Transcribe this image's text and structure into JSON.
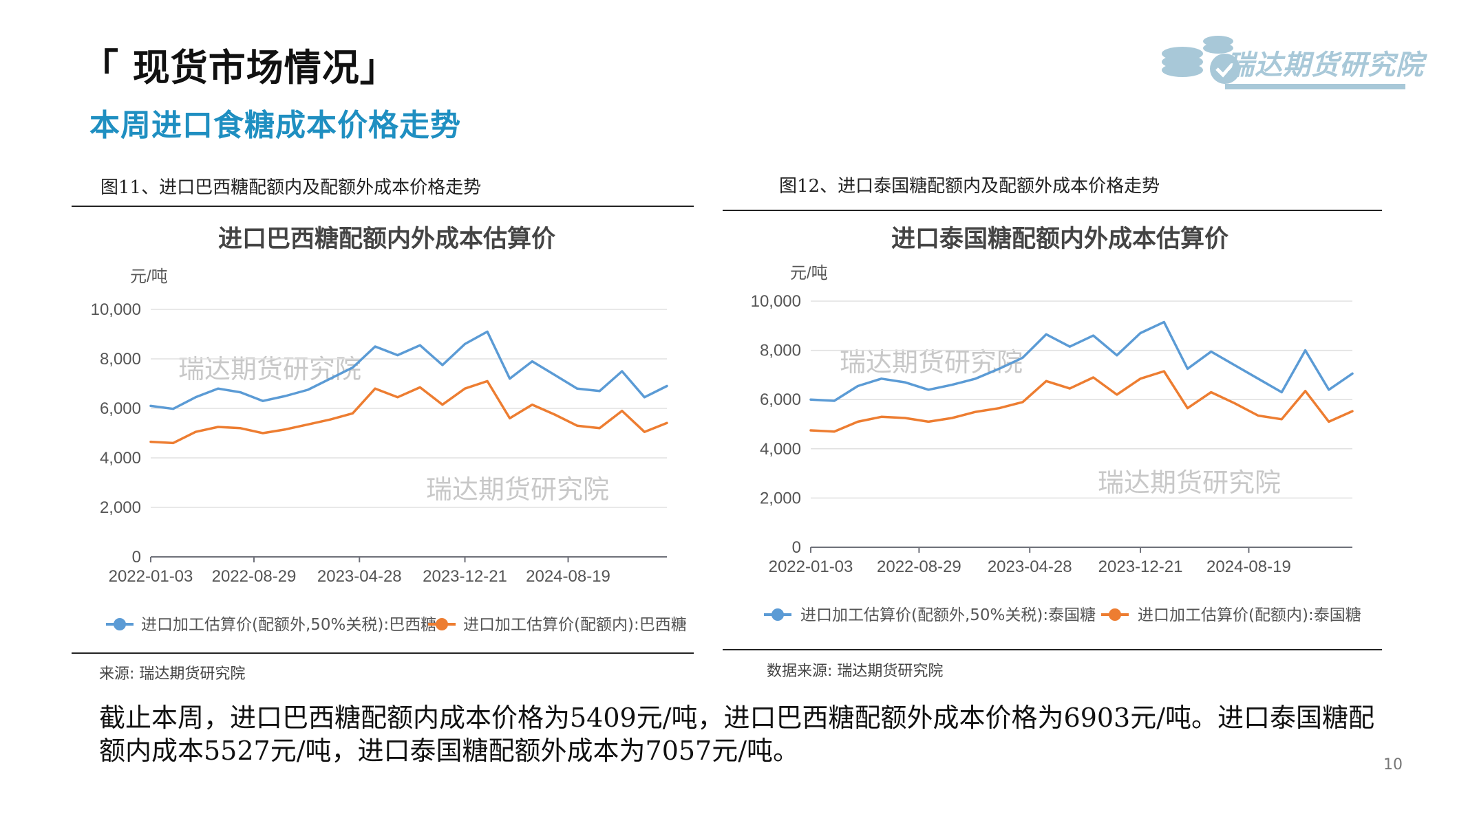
{
  "header": {
    "title": "「 现货市场情况」",
    "subtitle": "本周进口食糖成本价格走势"
  },
  "logo": {
    "text": "瑞达期货研究院",
    "colors": {
      "primary": "#a8c8d8"
    }
  },
  "figures": [
    {
      "caption": "图11、进口巴西糖配额内及配额外成本价格走势",
      "source": "来源:  瑞达期货研究院",
      "watermarks": [
        "瑞达期货研究院",
        "瑞达期货研究院"
      ]
    },
    {
      "caption": "图12、进口泰国糖配额内及配额外成本价格走势",
      "source": "数据来源:  瑞达期货研究院",
      "watermarks": [
        "瑞达期货研究院",
        "瑞达期货研究院"
      ]
    }
  ],
  "chart_data": [
    {
      "type": "line",
      "title": "进口巴西糖配额内外成本估算价",
      "ylabel": "元/吨",
      "ylim": [
        0,
        10000
      ],
      "yticks": [
        "10,000",
        "8,000",
        "6,000",
        "4,000",
        "2,000",
        "0"
      ],
      "ytick_values": [
        10000,
        8000,
        6000,
        4000,
        2000,
        0
      ],
      "x_tick_labels": [
        "2022-01-03",
        "2022-08-29",
        "2023-04-28",
        "2023-12-21",
        "2024-08-19"
      ],
      "x_tick_index": [
        0,
        4.6,
        9.3,
        14.0,
        18.6
      ],
      "x_range": [
        0,
        23
      ],
      "series": [
        {
          "name": "进口加工估算价(配额外,50%关税):巴西糖",
          "color": "#5b9bd5",
          "values": [
            6100,
            5980,
            6450,
            6800,
            6650,
            6300,
            6500,
            6750,
            7200,
            7650,
            8500,
            8150,
            8550,
            7750,
            8600,
            9100,
            7200,
            7900,
            7350,
            6800,
            6700,
            7500,
            6450,
            6903
          ]
        },
        {
          "name": "进口加工估算价(配额内):巴西糖",
          "color": "#ed7d31",
          "values": [
            4650,
            4600,
            5050,
            5250,
            5200,
            5000,
            5150,
            5350,
            5550,
            5800,
            6800,
            6450,
            6850,
            6150,
            6800,
            7100,
            5600,
            6150,
            5750,
            5300,
            5200,
            5900,
            5050,
            5409
          ]
        }
      ]
    },
    {
      "type": "line",
      "title": "进口泰国糖配额内外成本估算价",
      "ylabel": "元/吨",
      "ylim": [
        0,
        10000
      ],
      "yticks": [
        "10,000",
        "8,000",
        "6,000",
        "4,000",
        "2,000",
        "0"
      ],
      "ytick_values": [
        10000,
        8000,
        6000,
        4000,
        2000,
        0
      ],
      "x_tick_labels": [
        "2022-01-03",
        "2022-08-29",
        "2023-04-28",
        "2023-12-21",
        "2024-08-19"
      ],
      "x_tick_index": [
        0,
        4.6,
        9.3,
        14.0,
        18.6
      ],
      "x_range": [
        0,
        23
      ],
      "series": [
        {
          "name": "进口加工估算价(配额外,50%关税):泰国糖",
          "color": "#5b9bd5",
          "values": [
            6000,
            5950,
            6550,
            6850,
            6700,
            6400,
            6600,
            6850,
            7250,
            7700,
            8650,
            8150,
            8600,
            7800,
            8700,
            9150,
            7250,
            7950,
            7400,
            6850,
            6300,
            8000,
            6400,
            7057
          ]
        },
        {
          "name": "进口加工估算价(配额内):泰国糖",
          "color": "#ed7d31",
          "values": [
            4750,
            4700,
            5100,
            5300,
            5250,
            5100,
            5250,
            5500,
            5650,
            5900,
            6750,
            6450,
            6900,
            6200,
            6850,
            7150,
            5650,
            6300,
            5850,
            5350,
            5200,
            6350,
            5100,
            5527
          ]
        }
      ]
    }
  ],
  "body": {
    "paragraph": "截止本周，进口巴西糖配额内成本价格为5409元/吨，进口巴西糖配额外成本价格为6903元/吨。进口泰国糖配额内成本5527元/吨，进口泰国糖配额外成本为7057元/吨。"
  },
  "page_number": "10"
}
